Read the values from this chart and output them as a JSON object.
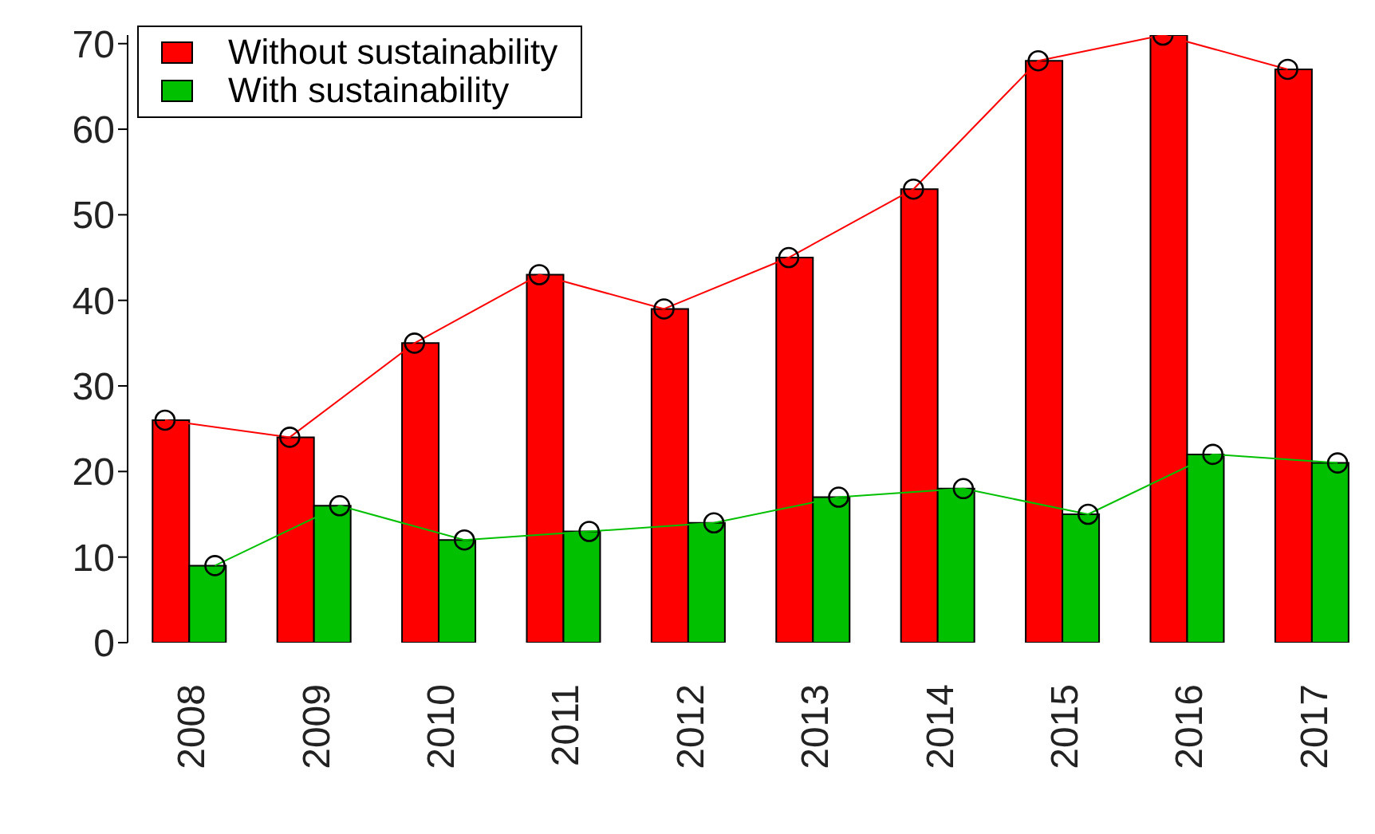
{
  "chart_data": {
    "type": "bar",
    "categories": [
      "2008",
      "2009",
      "2010",
      "2011",
      "2012",
      "2013",
      "2014",
      "2015",
      "2016",
      "2017"
    ],
    "series": [
      {
        "name": "Without sustainability",
        "color": "#ff0000",
        "values": [
          26,
          24,
          35,
          43,
          39,
          45,
          53,
          68,
          71,
          67
        ]
      },
      {
        "name": "With sustainability",
        "color": "#00c000",
        "values": [
          9,
          16,
          12,
          13,
          14,
          17,
          18,
          15,
          22,
          21
        ]
      },
      {
        "type": "line",
        "color": "#ff0000",
        "values": [
          26,
          24,
          35,
          43,
          39,
          45,
          53,
          68,
          71,
          67
        ]
      },
      {
        "type": "line",
        "color": "#00c000",
        "values": [
          9,
          16,
          12,
          13,
          14,
          17,
          18,
          15,
          22,
          21
        ]
      }
    ],
    "ylim": [
      0,
      71
    ],
    "yticks": [
      0,
      10,
      20,
      30,
      40,
      50,
      60,
      70
    ],
    "grid": false,
    "legend": "top left",
    "marker": "circle",
    "line_style": "solid"
  }
}
